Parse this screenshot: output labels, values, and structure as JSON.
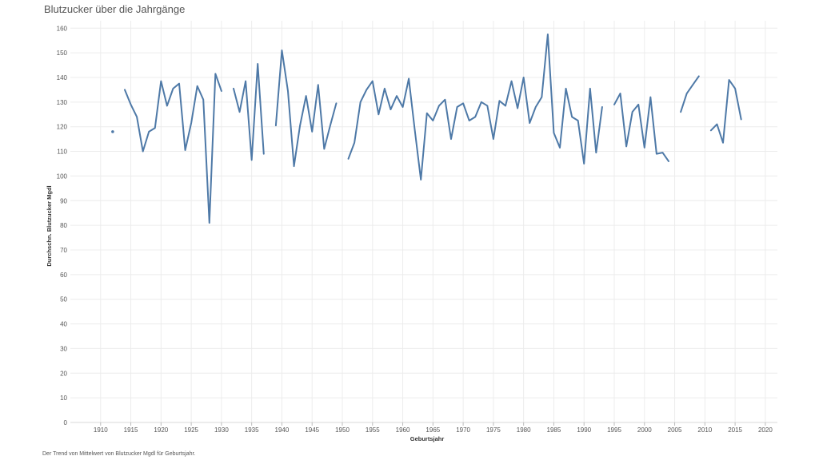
{
  "header": {
    "title": "Blutzucker über die Jahrgänge"
  },
  "footer": {
    "caption": "Der Trend von Mittelwert von Blutzucker Mgdl für Geburtsjahr."
  },
  "chart_data": {
    "type": "line",
    "title": "Blutzucker über die Jahrgänge",
    "xlabel": "Geburtsjahr",
    "ylabel": "Durchschn. Blutzucker Mgdl",
    "xlim": [
      1905,
      2022
    ],
    "ylim": [
      0,
      163
    ],
    "x_ticks": [
      1910,
      1915,
      1920,
      1925,
      1930,
      1935,
      1940,
      1945,
      1950,
      1955,
      1960,
      1965,
      1970,
      1975,
      1980,
      1985,
      1990,
      1995,
      2000,
      2005,
      2010,
      2015,
      2020
    ],
    "y_ticks": [
      0,
      10,
      20,
      30,
      40,
      50,
      60,
      70,
      80,
      90,
      100,
      110,
      120,
      130,
      140,
      150,
      160
    ],
    "grid": true,
    "color": "#4e79a7",
    "series": [
      {
        "values": [
          [
            1912,
            118
          ],
          [
            1914,
            135
          ],
          [
            1915,
            129
          ],
          [
            1916,
            124
          ],
          [
            1917,
            110
          ],
          [
            1918,
            118
          ],
          [
            1919,
            119.5
          ],
          [
            1920,
            138.5
          ],
          [
            1921,
            128.5
          ],
          [
            1922,
            135.5
          ],
          [
            1923,
            137.5
          ],
          [
            1924,
            110.5
          ],
          [
            1925,
            121.5
          ],
          [
            1926,
            136.5
          ],
          [
            1927,
            131
          ],
          [
            1928,
            81
          ],
          [
            1929,
            141.5
          ],
          [
            1930,
            134.5
          ],
          [
            1932,
            135.5
          ],
          [
            1933,
            126
          ],
          [
            1934,
            138.5
          ],
          [
            1935,
            106.5
          ],
          [
            1936,
            145.5
          ],
          [
            1937,
            109
          ],
          [
            1939,
            120.5
          ],
          [
            1940,
            151
          ],
          [
            1941,
            134.5
          ],
          [
            1942,
            104
          ],
          [
            1943,
            120.5
          ],
          [
            1944,
            132.5
          ],
          [
            1945,
            118
          ],
          [
            1946,
            137
          ],
          [
            1947,
            111
          ],
          [
            1948,
            120.5
          ],
          [
            1949,
            129.5
          ],
          [
            1951,
            107
          ],
          [
            1952,
            113.5
          ],
          [
            1953,
            130
          ],
          [
            1954,
            135
          ],
          [
            1955,
            138.5
          ],
          [
            1956,
            125
          ],
          [
            1957,
            135.5
          ],
          [
            1958,
            127
          ],
          [
            1959,
            132.5
          ],
          [
            1960,
            128
          ],
          [
            1961,
            139.5
          ],
          [
            1962,
            118.5
          ],
          [
            1963,
            98.5
          ],
          [
            1964,
            125.5
          ],
          [
            1965,
            122.5
          ],
          [
            1966,
            128.5
          ],
          [
            1967,
            131
          ],
          [
            1968,
            115
          ],
          [
            1969,
            128
          ],
          [
            1970,
            129.5
          ],
          [
            1971,
            122.5
          ],
          [
            1972,
            124
          ],
          [
            1973,
            130
          ],
          [
            1974,
            128.5
          ],
          [
            1975,
            115
          ],
          [
            1976,
            130.5
          ],
          [
            1977,
            128.5
          ],
          [
            1978,
            138.5
          ],
          [
            1979,
            127.5
          ],
          [
            1980,
            140
          ],
          [
            1981,
            121.5
          ],
          [
            1982,
            128
          ],
          [
            1983,
            132
          ],
          [
            1984,
            157.5
          ],
          [
            1985,
            117.5
          ],
          [
            1986,
            111.5
          ],
          [
            1987,
            135.5
          ],
          [
            1988,
            124
          ],
          [
            1989,
            122.5
          ],
          [
            1990,
            105
          ],
          [
            1991,
            135.5
          ],
          [
            1992,
            109.5
          ],
          [
            1993,
            128
          ],
          [
            1995,
            129
          ],
          [
            1996,
            133.5
          ],
          [
            1997,
            112
          ],
          [
            1998,
            126
          ],
          [
            1999,
            129
          ],
          [
            2000,
            111.5
          ],
          [
            2001,
            132
          ],
          [
            2002,
            109
          ],
          [
            2003,
            109.5
          ],
          [
            2004,
            106
          ],
          [
            2006,
            126
          ],
          [
            2007,
            133.5
          ],
          [
            2008,
            137
          ],
          [
            2009,
            140.5
          ],
          [
            2011,
            118.5
          ],
          [
            2012,
            121
          ],
          [
            2013,
            113.5
          ],
          [
            2014,
            139
          ],
          [
            2015,
            135.5
          ],
          [
            2016,
            123
          ]
        ]
      }
    ]
  }
}
